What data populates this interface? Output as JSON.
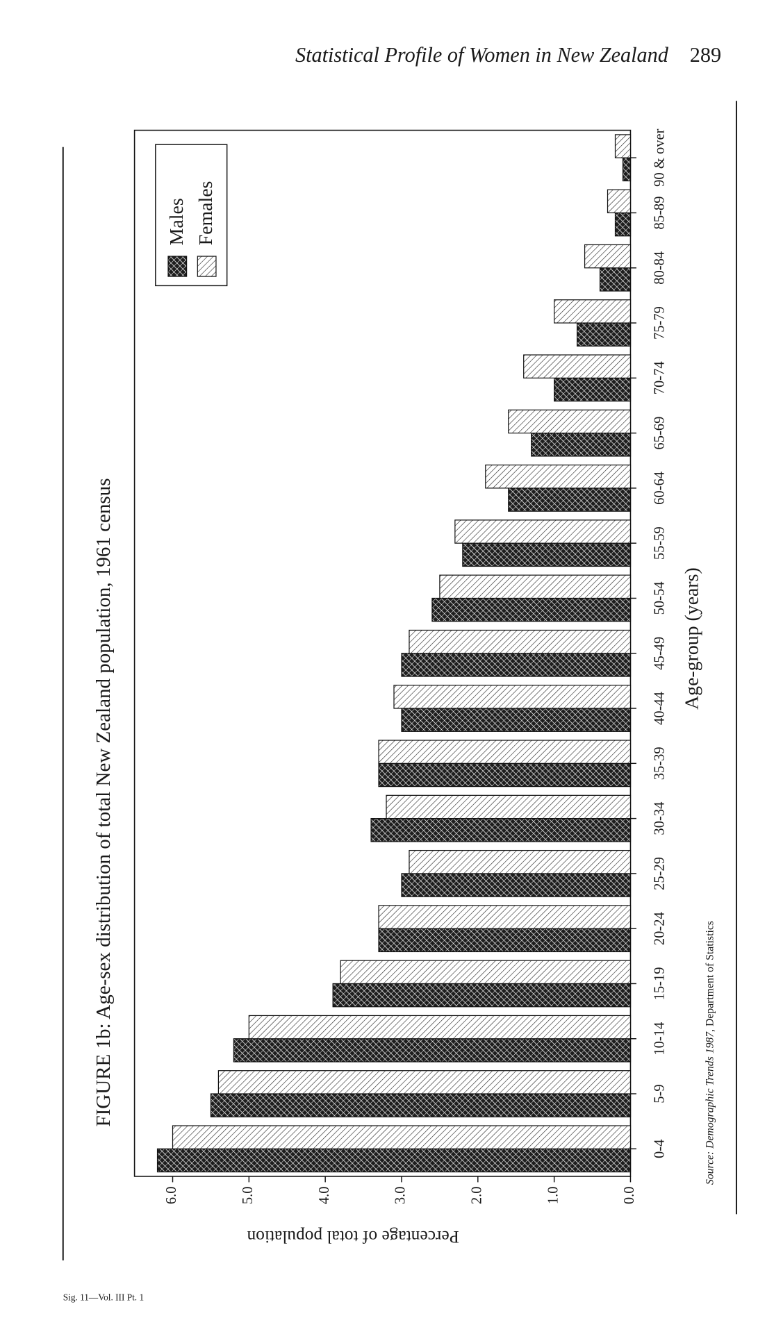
{
  "header": {
    "title": "Statistical Profile of Women in New Zealand",
    "page_number": "289"
  },
  "chart_data": {
    "type": "bar",
    "title": "FIGURE 1b: Age-sex distribution of total New Zealand population, 1961 census",
    "x_label": "Age-group (years)",
    "y_label": "Percentage of total population",
    "categories": [
      "0-4",
      "5-9",
      "10-14",
      "15-19",
      "20-24",
      "25-29",
      "30-34",
      "35-39",
      "40-44",
      "45-49",
      "50-54",
      "55-59",
      "60-64",
      "65-69",
      "70-74",
      "75-79",
      "80-84",
      "85-89",
      "90 & over"
    ],
    "series": [
      {
        "name": "Males",
        "color": "#1e1e1e",
        "values": [
          6.2,
          5.5,
          5.2,
          3.9,
          3.3,
          3.0,
          3.4,
          3.3,
          3.0,
          3.0,
          2.6,
          2.2,
          1.6,
          1.3,
          1.0,
          0.7,
          0.4,
          0.2,
          0.1
        ]
      },
      {
        "name": "Females",
        "color": "#ffffff",
        "values": [
          6.0,
          5.4,
          5.0,
          3.8,
          3.3,
          2.9,
          3.2,
          3.3,
          3.1,
          2.9,
          2.5,
          2.3,
          1.9,
          1.6,
          1.4,
          1.0,
          0.6,
          0.3,
          0.2
        ]
      }
    ],
    "ylim": [
      0,
      6.5
    ],
    "yticks": [
      {
        "value": 0,
        "label": "0.0"
      },
      {
        "value": 1,
        "label": "1.0"
      },
      {
        "value": 2,
        "label": "2.0"
      },
      {
        "value": 3,
        "label": "3.0"
      },
      {
        "value": 4,
        "label": "4.0"
      },
      {
        "value": 5,
        "label": "5.0"
      },
      {
        "value": 6,
        "label": "6.0"
      }
    ],
    "legend": "upper right",
    "grid": false
  },
  "source": {
    "italic": "Source: Demographic Trends 1987",
    "plain": ", Department of Statistics"
  },
  "footer": "Sig. 11—Vol. III Pt. 1"
}
